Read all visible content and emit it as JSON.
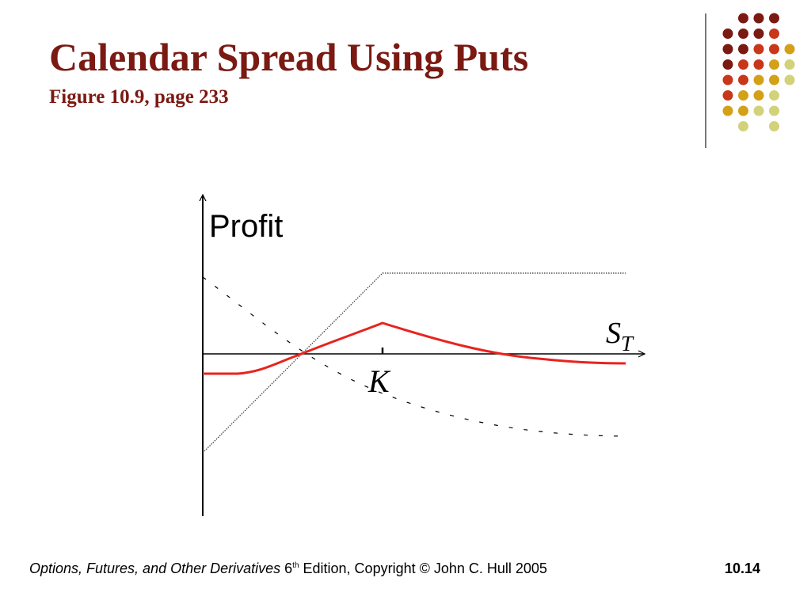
{
  "slide": {
    "title": "Calendar Spread Using Puts",
    "subtitle": "Figure 10.9, page 233"
  },
  "diagram": {
    "y_axis_label": "Profit",
    "x_axis_label_main": "S",
    "x_axis_label_sub": "T",
    "strike_label": "K",
    "colors": {
      "profit_curve": "#e8231e",
      "axes": "#000000",
      "guide_lines": "#333333"
    }
  },
  "decoration": {
    "dot_colors": [
      "#7a1a12",
      "#c8371a",
      "#d4a017",
      "#d2d27a"
    ]
  },
  "footer": {
    "book_title": "Options, Futures, and Other Derivatives",
    "edition_number": "6",
    "edition_suffix": "th",
    "edition_rest": " Edition, Copyright © John C. Hull 2005",
    "page_number": "10.14"
  }
}
